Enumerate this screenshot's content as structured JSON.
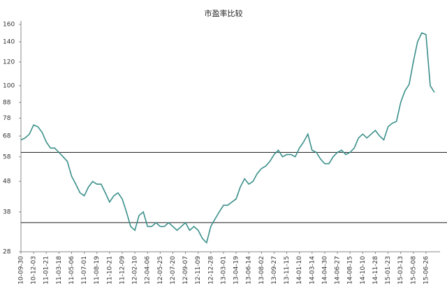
{
  "chart_data": {
    "type": "line",
    "title": "市盈率比较",
    "log_scale": true,
    "ylim": [
      28,
      160
    ],
    "yticks": [
      28,
      38,
      48,
      58,
      68,
      78,
      88,
      100,
      120,
      140,
      160
    ],
    "hlines": [
      60,
      35
    ],
    "categories": [
      "10-09-30",
      null,
      null,
      "10-12-03",
      null,
      null,
      "11-01-21",
      null,
      null,
      "11-03-18",
      null,
      null,
      "11-05-06",
      null,
      null,
      "11-07-01",
      null,
      null,
      "11-08-19",
      null,
      null,
      "11-10-21",
      null,
      null,
      "11-12-09",
      null,
      null,
      "12-02-10",
      null,
      null,
      "12-04-06",
      null,
      null,
      "12-05-25",
      null,
      null,
      "12-07-20",
      null,
      null,
      "12-09-07",
      null,
      null,
      "12-11-09",
      null,
      null,
      "12-12-28",
      null,
      null,
      "13-03-01",
      null,
      null,
      "13-04-19",
      null,
      null,
      "13-06-14",
      null,
      null,
      "13-08-02",
      null,
      null,
      "13-09-27",
      null,
      null,
      "13-11-15",
      null,
      null,
      "14-01-10",
      null,
      null,
      "14-03-14",
      null,
      null,
      "14-04-30",
      null,
      null,
      "14-06-27",
      null,
      null,
      "14-08-15",
      null,
      null,
      "14-10-10",
      null,
      null,
      "14-11-28",
      null,
      null,
      "15-01-23",
      null,
      null,
      "15-03-13",
      null,
      null,
      "15-05-08",
      null,
      null,
      "15-06-26",
      null,
      null
    ],
    "series": [
      {
        "color": "#3a8f8a",
        "values": [
          66,
          67,
          69,
          74,
          73,
          70,
          65,
          62,
          62,
          60,
          58,
          56,
          50,
          47,
          44,
          43,
          46,
          48,
          47,
          47,
          44,
          41,
          43,
          44,
          42,
          38,
          34,
          33,
          37,
          38,
          34,
          34,
          35,
          34,
          34,
          35,
          34,
          33,
          34,
          35,
          33,
          34,
          33,
          31,
          30,
          34,
          36,
          38,
          40,
          40,
          41,
          42,
          46,
          49,
          47,
          48,
          51,
          53,
          54,
          56,
          59,
          61,
          58,
          59,
          59,
          58,
          62,
          65,
          69,
          61,
          60,
          57,
          55,
          55,
          58,
          60,
          61,
          59,
          60,
          62,
          67,
          69,
          67,
          69,
          71,
          68,
          66,
          73,
          75,
          76,
          88,
          96,
          101,
          120,
          140,
          150,
          148,
          100,
          95
        ]
      }
    ]
  }
}
